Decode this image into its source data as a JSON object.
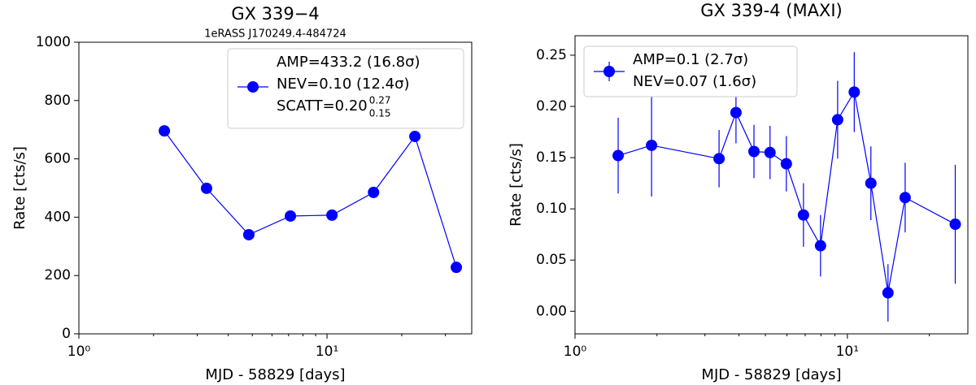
{
  "chart_data": [
    {
      "type": "line",
      "title": "GX 339−4",
      "subtitle": "1eRASS J170249.4-484724",
      "xlabel": "MJD - 58829 [days]",
      "ylabel": "Rate [cts/s]",
      "xscale": "log",
      "x": [
        2.21,
        3.27,
        4.84,
        7.12,
        10.47,
        15.4,
        22.6,
        33.2
      ],
      "series": [
        {
          "name": "AMP=433.2 (16.8σ)",
          "color": "#0000ff",
          "values": [
            696,
            499,
            340,
            404,
            407,
            485,
            677,
            228
          ]
        }
      ],
      "legend_extra": [
        "NEV=0.10 (12.4σ)",
        "SCATT=0.20"
      ],
      "legend_sup": "0.27",
      "legend_sub": "0.15",
      "xlim": [
        1,
        38.3
      ],
      "xticks": [
        {
          "value": 1,
          "label": "10⁰"
        },
        {
          "value": 10,
          "label": "10¹"
        }
      ],
      "ylim": [
        0,
        1000
      ],
      "yticks": [
        0,
        200,
        400,
        600,
        800,
        1000
      ],
      "legend": "upper right"
    },
    {
      "type": "errorbar",
      "title": "GX 339-4 (MAXI)",
      "xlabel": "MJD - 58829 [days]",
      "ylabel": "Rate [cts/s]",
      "xscale": "log",
      "x": [
        1.44,
        1.91,
        3.38,
        3.9,
        4.54,
        5.2,
        5.97,
        6.9,
        7.97,
        9.21,
        10.6,
        12.2,
        14.1,
        16.3,
        24.9
      ],
      "series": [
        {
          "name": "AMP=0.1 (2.7σ)",
          "color": "#0000ff",
          "values": [
            0.152,
            0.162,
            0.149,
            0.194,
            0.156,
            0.155,
            0.144,
            0.094,
            0.064,
            0.187,
            0.214,
            0.125,
            0.018,
            0.111,
            0.085
          ],
          "errors": [
            0.037,
            0.05,
            0.028,
            0.03,
            0.026,
            0.026,
            0.027,
            0.031,
            0.03,
            0.038,
            0.039,
            0.036,
            0.028,
            0.034,
            0.058
          ]
        }
      ],
      "legend_extra": [
        "NEV=0.07 (1.6σ)"
      ],
      "xlim": [
        1,
        27.7
      ],
      "xticks": [
        {
          "value": 1,
          "label": "10⁰"
        },
        {
          "value": 10,
          "label": "10¹"
        }
      ],
      "ylim": [
        -0.022,
        0.269
      ],
      "yticks": [
        {
          "value": 0,
          "label": "0.00"
        },
        0.05,
        {
          "value": 0.1,
          "label": "0.10"
        },
        0.15,
        {
          "value": 0.2,
          "label": "0.20"
        },
        0.25
      ],
      "legend": "upper left"
    }
  ]
}
